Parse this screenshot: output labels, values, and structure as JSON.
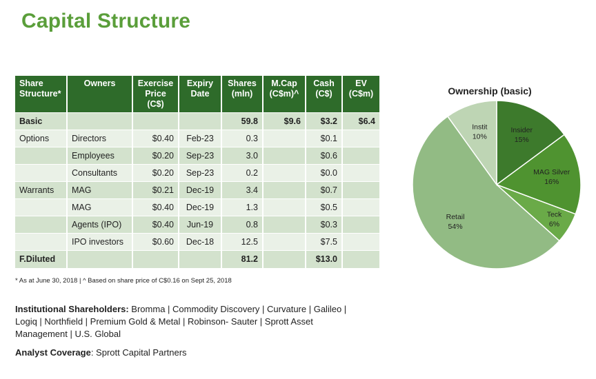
{
  "title": "Capital Structure",
  "table": {
    "headers": [
      [
        "Share",
        "Structure*"
      ],
      [
        "Owners"
      ],
      [
        "Exercise",
        "Price",
        "(C$)"
      ],
      [
        "Expiry",
        "Date"
      ],
      [
        "Shares",
        "(mln)"
      ],
      [
        "M.Cap",
        "(C$m)^"
      ],
      [
        "Cash",
        "(C$)"
      ],
      [
        "EV",
        "(C$m)"
      ]
    ],
    "rows": [
      [
        "Basic",
        "",
        "",
        "",
        "59.8",
        "$9.6",
        "$3.2",
        "$6.4"
      ],
      [
        "Options",
        "Directors",
        "$0.40",
        "Feb-23",
        "0.3",
        "",
        "$0.1",
        ""
      ],
      [
        "",
        "Employees",
        "$0.20",
        "Sep-23",
        "3.0",
        "",
        "$0.6",
        ""
      ],
      [
        "",
        "Consultants",
        "$0.20",
        "Sep-23",
        "0.2",
        "",
        "$0.0",
        ""
      ],
      [
        "Warrants",
        "MAG",
        "$0.21",
        "Dec-19",
        "3.4",
        "",
        "$0.7",
        ""
      ],
      [
        "",
        "MAG",
        "$0.40",
        "Dec-19",
        "1.3",
        "",
        "$0.5",
        ""
      ],
      [
        "",
        "Agents (IPO)",
        "$0.40",
        "Jun-19",
        "0.8",
        "",
        "$0.3",
        ""
      ],
      [
        "",
        "IPO investors",
        "$0.60",
        "Dec-18",
        "12.5",
        "",
        "$7.5",
        ""
      ],
      [
        "F.Diluted",
        "",
        "",
        "",
        "81.2",
        "",
        "$13.0",
        ""
      ]
    ]
  },
  "footnote": "* As at June 30, 2018  |  ^ Based on share price of C$0.16 on Sept 25, 2018",
  "institutional": {
    "label": "Institutional Shareholders:",
    "text": " Bromma | Commodity Discovery | Curvature | Galileo | Logiq | Northfield | Premium Gold & Metal | Robinson- Sauter | Sprott Asset Management | U.S. Global"
  },
  "analyst": {
    "label": "Analyst Coverage",
    "text": ": Sprott Capital Partners"
  },
  "chart_data": {
    "type": "pie",
    "title": "Ownership (basic)",
    "slices": [
      {
        "name": "Insider",
        "value": 15,
        "label": "15%",
        "color": "#3d7a2c"
      },
      {
        "name": "MAG Silver",
        "value": 16,
        "label": "16%",
        "color": "#4f9330"
      },
      {
        "name": "Teck",
        "value": 6,
        "label": "6%",
        "color": "#6aaa48"
      },
      {
        "name": "Retail",
        "value": 54,
        "label": "54%",
        "color": "#92bb84"
      },
      {
        "name": "Instit",
        "value": 10,
        "label": "10%",
        "color": "#bed5b4"
      }
    ]
  }
}
